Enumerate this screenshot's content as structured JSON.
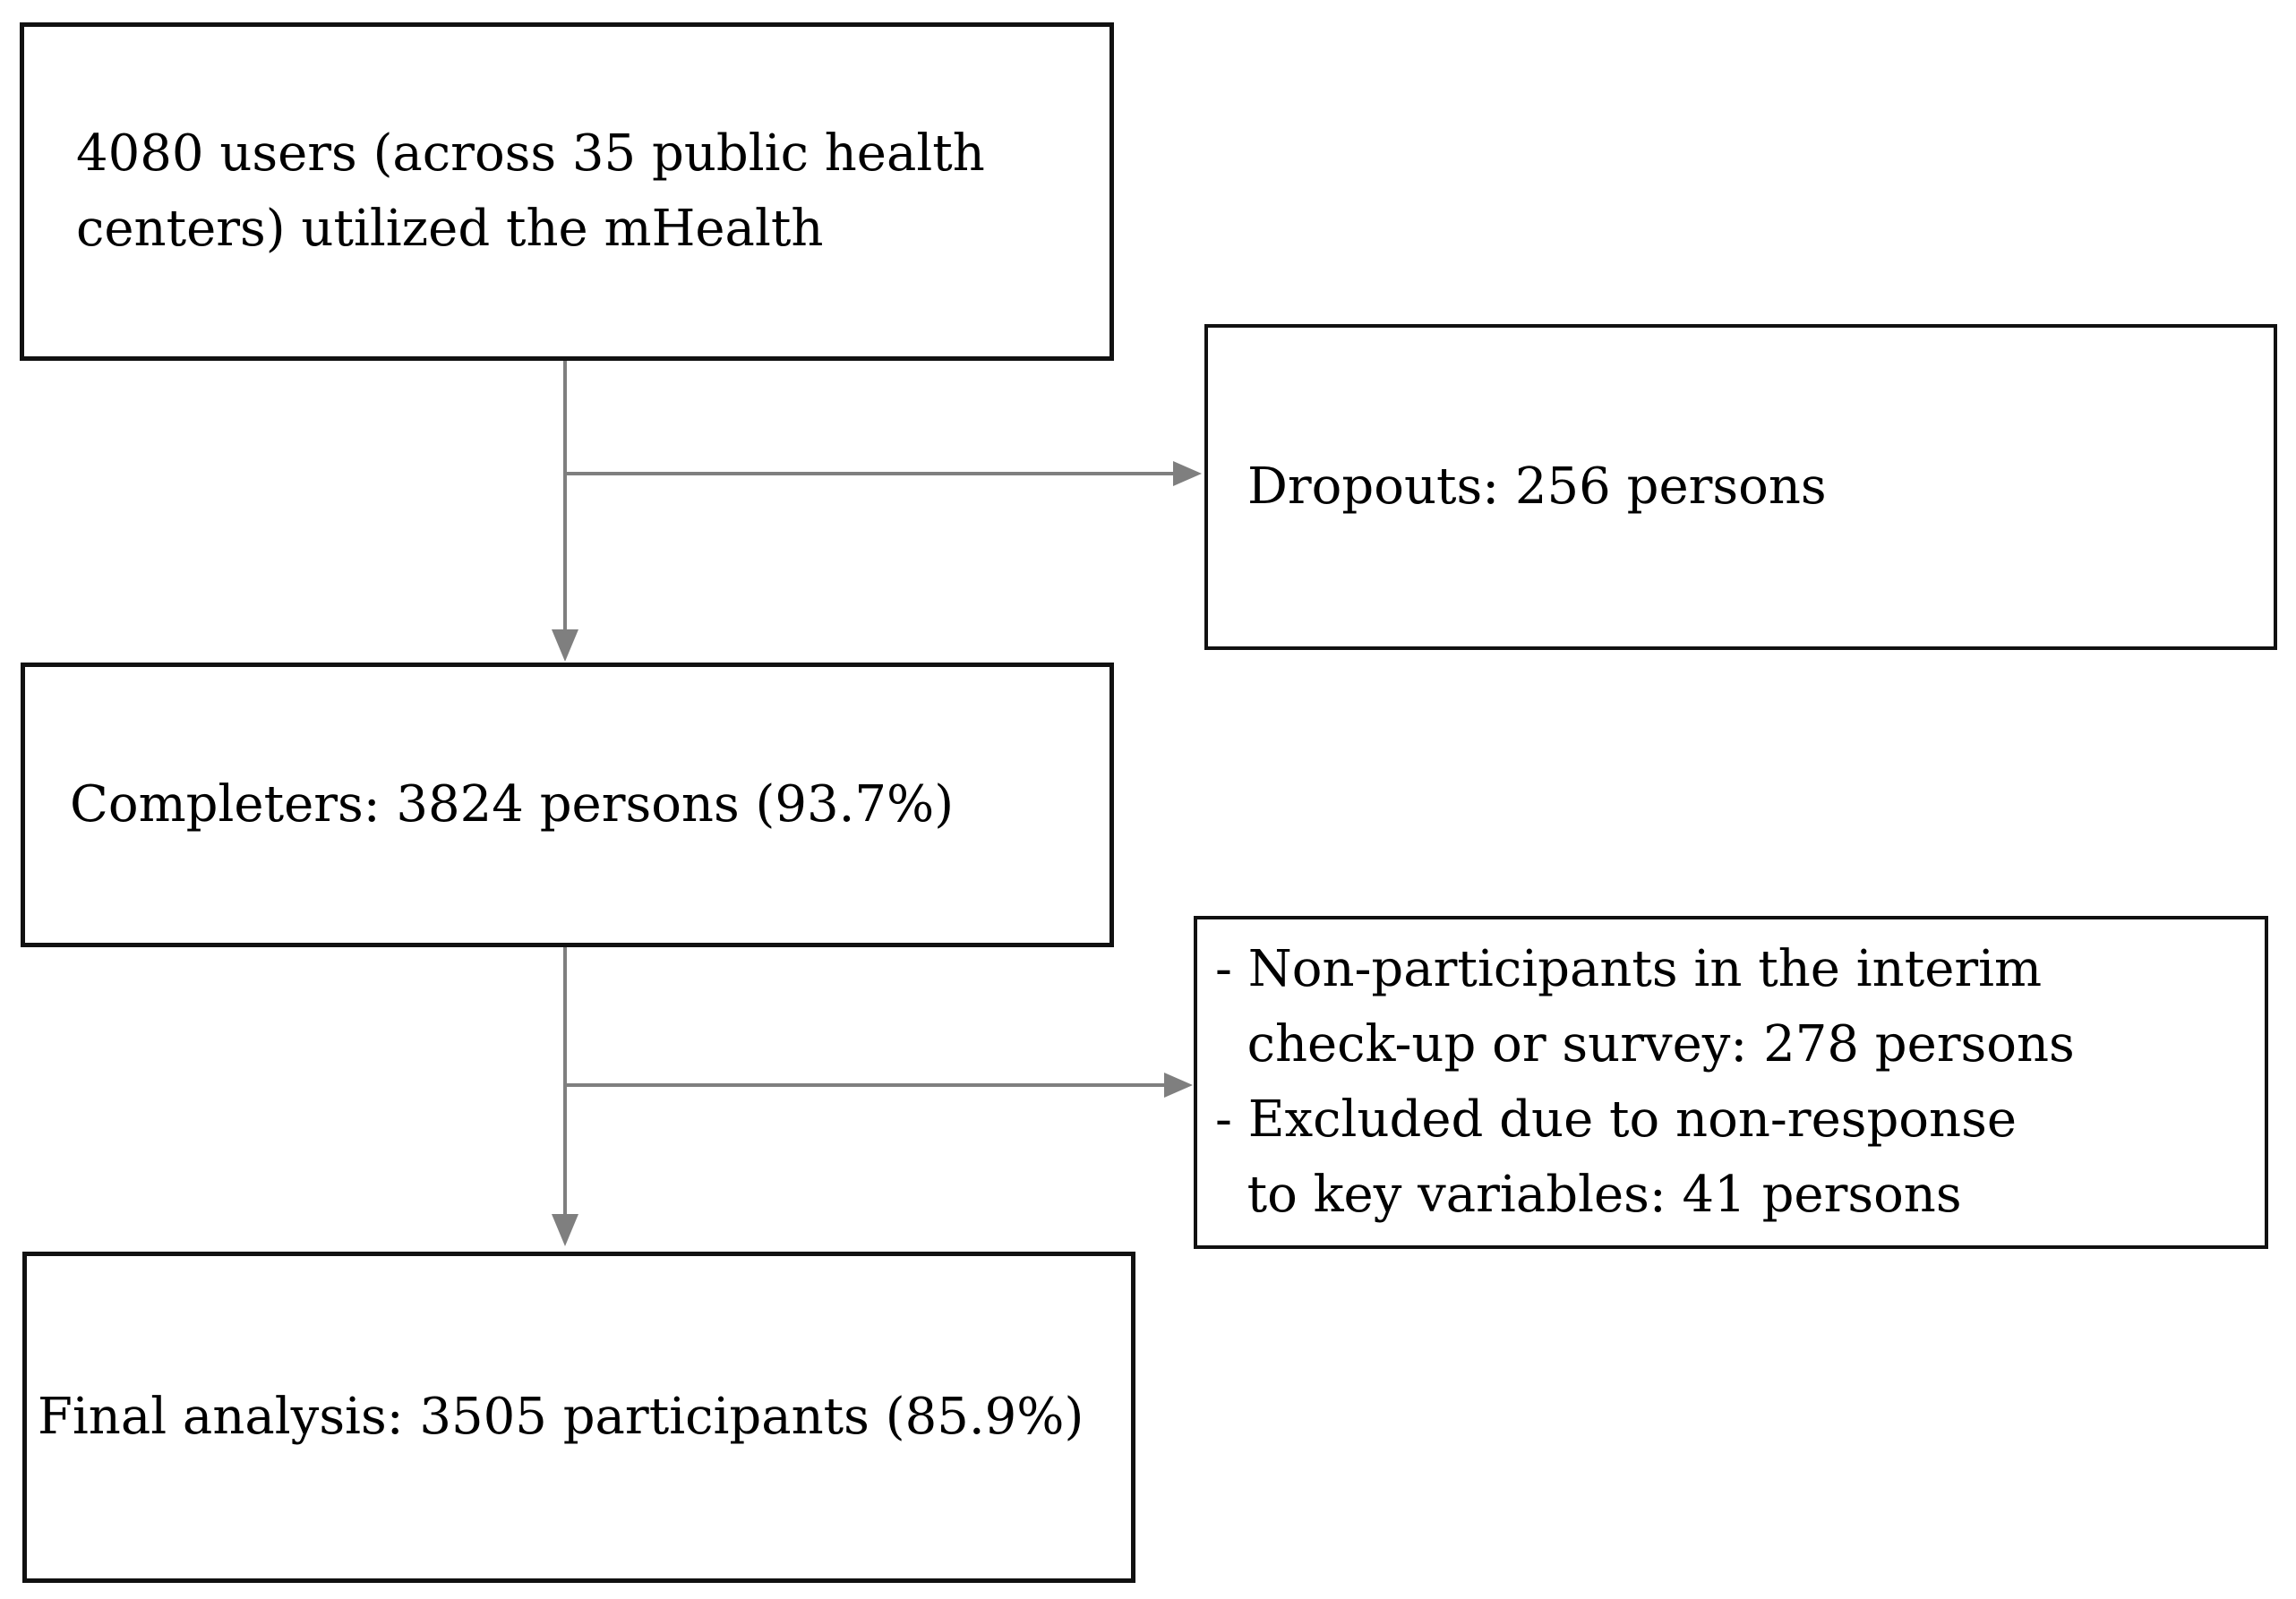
{
  "figure": {
    "type": "participant-flow-diagram",
    "colors": {
      "box_border": "#111111",
      "arrow": "#7f7f7f",
      "text": "#000000",
      "background": "#ffffff"
    },
    "boxes": {
      "users": {
        "text": "4080 users (across 35 public health centers) utilized the mHealth"
      },
      "dropouts": {
        "text": "Dropouts: 256 persons"
      },
      "completers": {
        "text": "Completers: 3824 persons (93.7%)"
      },
      "exclusions": {
        "lines": [
          "- Non-participants in the interim",
          "  check-up or survey: 278 persons",
          "- Excluded due to non-response",
          "  to key variables: 41 persons"
        ]
      },
      "final": {
        "text": "Final analysis: 3505 participants (85.9%)"
      }
    }
  }
}
